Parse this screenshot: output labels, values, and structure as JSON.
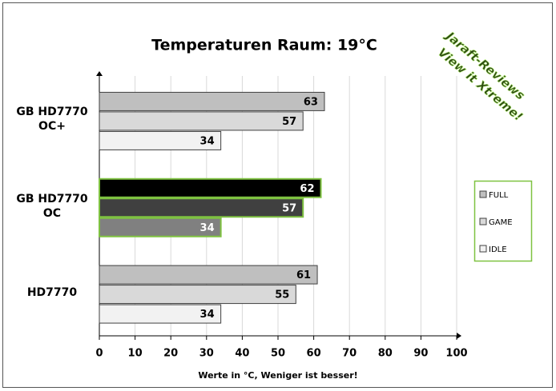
{
  "chart_data": {
    "type": "hbar",
    "title": "Temperaturen Raum: 19°C",
    "x_label": "Werte in  °C, Weniger ist besser!",
    "watermark": [
      "Jaraft-Reviews",
      "View it Xtreme!"
    ],
    "categories": [
      "GB HD7770 OC+",
      "GB HD7770 OC",
      "HD7770"
    ],
    "series": [
      {
        "name": "FULL",
        "color": "#bfbfbf",
        "point_colors": [
          "#bfbfbf",
          "#000000",
          "#bfbfbf"
        ],
        "values": [
          63,
          62,
          61
        ]
      },
      {
        "name": "GAME",
        "color": "#d9d9d9",
        "point_colors": [
          "#d9d9d9",
          "#404040",
          "#d9d9d9"
        ],
        "values": [
          57,
          57,
          55
        ]
      },
      {
        "name": "IDLE",
        "color": "#f2f2f2",
        "point_colors": [
          "#f2f2f2",
          "#808080",
          "#f2f2f2"
        ],
        "values": [
          34,
          34,
          34
        ]
      }
    ],
    "point_borders": [
      "#404040",
      "#7fc241",
      "#404040"
    ],
    "xlim": [
      0,
      100
    ],
    "xticks": [
      0,
      10,
      20,
      30,
      40,
      50,
      60,
      70,
      80,
      90,
      100
    ],
    "grid": true
  }
}
